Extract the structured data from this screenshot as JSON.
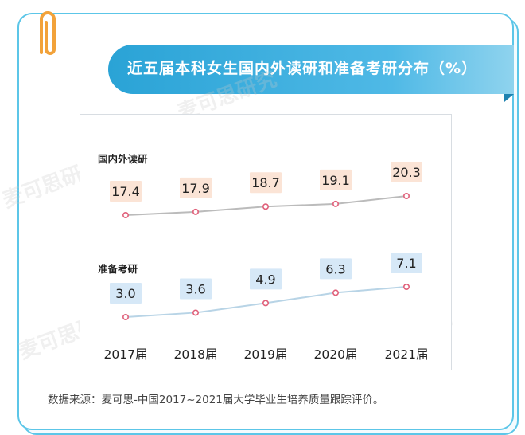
{
  "page": {
    "title": "近五届本科女生国内外读研和准备考研分布（%）",
    "source": "数据来源：麦可思-中国2017~2021届大学毕业生培养质量跟踪评价。",
    "watermark": "麦可思研究"
  },
  "colors": {
    "banner": "#2aa3d6",
    "border": "#5cc6e8",
    "series1_label_bg": "#fbe4d6",
    "series1_line": "#bbbbbb",
    "series2_label_bg": "#d6e8f7",
    "series2_line": "#b8d4e6",
    "marker": "#e0607a"
  },
  "chart_data": {
    "type": "line",
    "categories": [
      "2017届",
      "2018届",
      "2019届",
      "2020届",
      "2021届"
    ],
    "series": [
      {
        "name": "国内外读研",
        "values": [
          17.4,
          17.9,
          18.7,
          19.1,
          20.3
        ]
      },
      {
        "name": "准备考研",
        "values": [
          3.0,
          3.6,
          4.9,
          6.3,
          7.1
        ]
      }
    ],
    "title": "近五届本科女生国内外读研和准备考研分布（%）",
    "xlabel": "",
    "ylabel": "",
    "grid": false,
    "legend": "inline"
  }
}
